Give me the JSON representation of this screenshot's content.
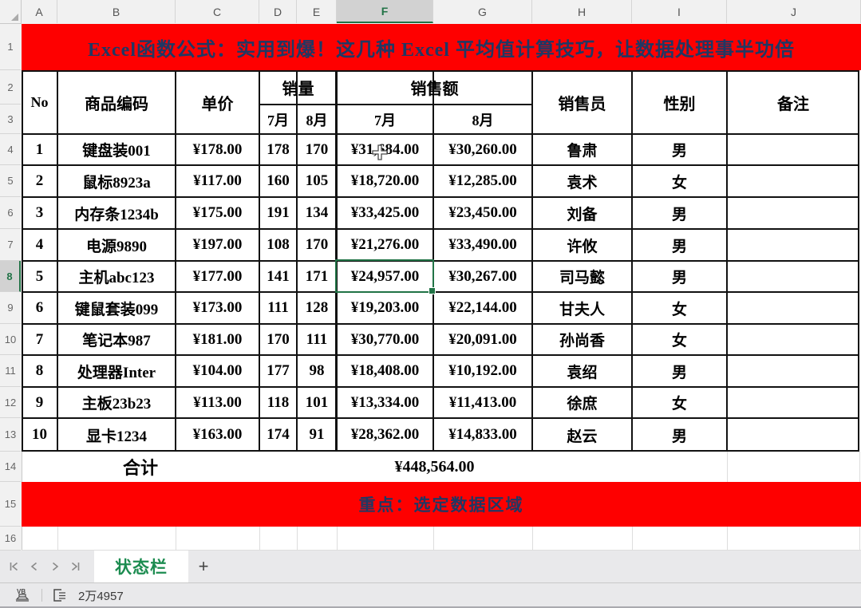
{
  "banners": {
    "title": "Excel函数公式：实用到爆！这几种 Excel 平均值计算技巧，让数据处理事半功倍",
    "highlight": "重点：选定数据区域"
  },
  "colors": {
    "banner_red": "#FE0000",
    "banner_text_navy": "#1F3864",
    "accent_green": "#217346",
    "grid_black": "#111111"
  },
  "column_headers": [
    "A",
    "B",
    "C",
    "D",
    "E",
    "F",
    "G",
    "H",
    "I",
    "J"
  ],
  "row_headers": [
    "1",
    "2",
    "3",
    "4",
    "5",
    "6",
    "7",
    "8",
    "9",
    "10",
    "11",
    "12",
    "13",
    "14",
    "15",
    "16"
  ],
  "selection": {
    "active_cell": "F8",
    "active_column": "F",
    "active_row": "8",
    "active_value": "¥24,957.00"
  },
  "table": {
    "headers": {
      "no": "No",
      "product": "商品编码",
      "price": "单价",
      "sales_qty": "销量",
      "sales_revenue": "销售额",
      "qty_jul": "7月",
      "qty_aug": "8月",
      "rev_jul": "7月",
      "rev_aug": "8月",
      "salesperson": "销售员",
      "gender": "性别",
      "note": "备注"
    },
    "rows": [
      {
        "no": "1",
        "product": "键盘装001",
        "price": "¥178.00",
        "qty_jul": "178",
        "qty_aug": "170",
        "rev_jul": "¥31,684.00",
        "rev_aug": "¥30,260.00",
        "person": "鲁肃",
        "gender": "男",
        "note": ""
      },
      {
        "no": "2",
        "product": "鼠标8923a",
        "price": "¥117.00",
        "qty_jul": "160",
        "qty_aug": "105",
        "rev_jul": "¥18,720.00",
        "rev_aug": "¥12,285.00",
        "person": "袁术",
        "gender": "女",
        "note": ""
      },
      {
        "no": "3",
        "product": "内存条1234b",
        "price": "¥175.00",
        "qty_jul": "191",
        "qty_aug": "134",
        "rev_jul": "¥33,425.00",
        "rev_aug": "¥23,450.00",
        "person": "刘备",
        "gender": "男",
        "note": ""
      },
      {
        "no": "4",
        "product": "电源9890",
        "price": "¥197.00",
        "qty_jul": "108",
        "qty_aug": "170",
        "rev_jul": "¥21,276.00",
        "rev_aug": "¥33,490.00",
        "person": "许攸",
        "gender": "男",
        "note": ""
      },
      {
        "no": "5",
        "product": "主机abc123",
        "price": "¥177.00",
        "qty_jul": "141",
        "qty_aug": "171",
        "rev_jul": "¥24,957.00",
        "rev_aug": "¥30,267.00",
        "person": "司马懿",
        "gender": "男",
        "note": ""
      },
      {
        "no": "6",
        "product": "键鼠套装099",
        "price": "¥173.00",
        "qty_jul": "111",
        "qty_aug": "128",
        "rev_jul": "¥19,203.00",
        "rev_aug": "¥22,144.00",
        "person": "甘夫人",
        "gender": "女",
        "note": ""
      },
      {
        "no": "7",
        "product": "笔记本987",
        "price": "¥181.00",
        "qty_jul": "170",
        "qty_aug": "111",
        "rev_jul": "¥30,770.00",
        "rev_aug": "¥20,091.00",
        "person": "孙尚香",
        "gender": "女",
        "note": ""
      },
      {
        "no": "8",
        "product": "处理器Inter",
        "price": "¥104.00",
        "qty_jul": "177",
        "qty_aug": "98",
        "rev_jul": "¥18,408.00",
        "rev_aug": "¥10,192.00",
        "person": "袁绍",
        "gender": "男",
        "note": ""
      },
      {
        "no": "9",
        "product": "主板23b23",
        "price": "¥113.00",
        "qty_jul": "118",
        "qty_aug": "101",
        "rev_jul": "¥13,334.00",
        "rev_aug": "¥11,413.00",
        "person": "徐庶",
        "gender": "女",
        "note": ""
      },
      {
        "no": "10",
        "product": "显卡1234",
        "price": "¥163.00",
        "qty_jul": "174",
        "qty_aug": "91",
        "rev_jul": "¥28,362.00",
        "rev_aug": "¥14,833.00",
        "person": "赵云",
        "gender": "男",
        "note": ""
      }
    ]
  },
  "summary": {
    "label": "合计",
    "total": "¥448,564.00"
  },
  "sheet_bar": {
    "active_tab": "状态栏",
    "add_label": "+",
    "nav_icons": [
      "first-sheet-icon",
      "previous-sheet-icon",
      "next-sheet-icon",
      "last-sheet-icon"
    ]
  },
  "status_bar": {
    "macro_icon": "vb-macro-record-icon",
    "cell_info_icon": "cell-reading-mode-icon",
    "value": "2万4957"
  }
}
